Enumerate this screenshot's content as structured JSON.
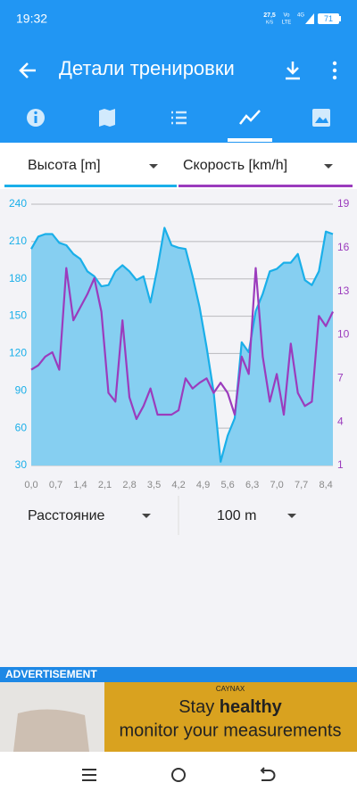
{
  "status_bar": {
    "time": "19:32",
    "net_speed": "27,5",
    "net_unit": "K/S",
    "signal_labels": [
      "Vo",
      "LTE",
      "4G"
    ],
    "battery": "71"
  },
  "app_bar": {
    "title": "Детали тренировки"
  },
  "chart_data": {
    "type": "line",
    "x": [
      0,
      0.2,
      0.4,
      0.6,
      0.8,
      1.0,
      1.2,
      1.4,
      1.6,
      1.8,
      2.0,
      2.2,
      2.4,
      2.6,
      2.8,
      3.0,
      3.2,
      3.4,
      3.6,
      3.8,
      4.0,
      4.2,
      4.4,
      4.6,
      4.8,
      5.0,
      5.2,
      5.4,
      5.6,
      5.8,
      6.0,
      6.2,
      6.4,
      6.6,
      6.8,
      7.0,
      7.2,
      7.4,
      7.6,
      7.8,
      8.0,
      8.2,
      8.4,
      8.6
    ],
    "series": [
      {
        "name": "Высота [m]",
        "color": "#1aafe9",
        "fill": "#86cff1",
        "axis": "y",
        "values": [
          204,
          214,
          216,
          216,
          209,
          207,
          200,
          196,
          186,
          182,
          174,
          175,
          186,
          191,
          186,
          179,
          182,
          161,
          189,
          221,
          207,
          205,
          204,
          182,
          157,
          125,
          89,
          33,
          54,
          68,
          129,
          121,
          154,
          168,
          186,
          188,
          193,
          193,
          200,
          179,
          175,
          186,
          218,
          216
        ]
      },
      {
        "name": "Скорость [km/h]",
        "color": "#9b3cbd",
        "axis": "y2",
        "values": [
          7.6,
          7.9,
          8.5,
          8.8,
          7.6,
          14.6,
          11.0,
          11.9,
          12.8,
          13.9,
          11.6,
          6.0,
          5.4,
          11.0,
          5.7,
          4.2,
          5.1,
          6.3,
          4.5,
          4.5,
          4.5,
          4.8,
          7.0,
          6.3,
          6.7,
          7.0,
          6.0,
          6.7,
          6.0,
          4.5,
          8.5,
          7.3,
          14.6,
          8.5,
          5.4,
          7.3,
          4.5,
          9.4,
          6.0,
          5.1,
          5.4,
          11.3,
          10.6,
          11.6
        ]
      }
    ],
    "xlim": [
      0,
      8.6
    ],
    "xticks": [
      {
        "value": 0,
        "label": "0,0"
      },
      {
        "value": 0.7,
        "label": "0,7"
      },
      {
        "value": 1.4,
        "label": "1,4"
      },
      {
        "value": 2.1,
        "label": "2,1"
      },
      {
        "value": 2.8,
        "label": "2,8"
      },
      {
        "value": 3.5,
        "label": "3,5"
      },
      {
        "value": 4.2,
        "label": "4,2"
      },
      {
        "value": 4.9,
        "label": "4,9"
      },
      {
        "value": 5.6,
        "label": "5,6"
      },
      {
        "value": 6.3,
        "label": "6,3"
      },
      {
        "value": 7.0,
        "label": "7,0"
      },
      {
        "value": 7.7,
        "label": "7,7"
      },
      {
        "value": 8.4,
        "label": "8,4"
      }
    ],
    "ylim": [
      30,
      240
    ],
    "yticks": [
      30,
      60,
      90,
      120,
      150,
      180,
      210,
      240
    ],
    "y2lim": [
      1,
      19
    ],
    "y2ticks": [
      1,
      4,
      7,
      10,
      13,
      16,
      19
    ],
    "grid": true
  },
  "controls": {
    "x_axis": "Расстояние",
    "interval": "100 m"
  },
  "ad": {
    "label": "ADVERTISEMENT",
    "brand": "CAYNAX",
    "headline": [
      "Stay",
      "healthy"
    ],
    "tagline": "monitor your measurements"
  }
}
